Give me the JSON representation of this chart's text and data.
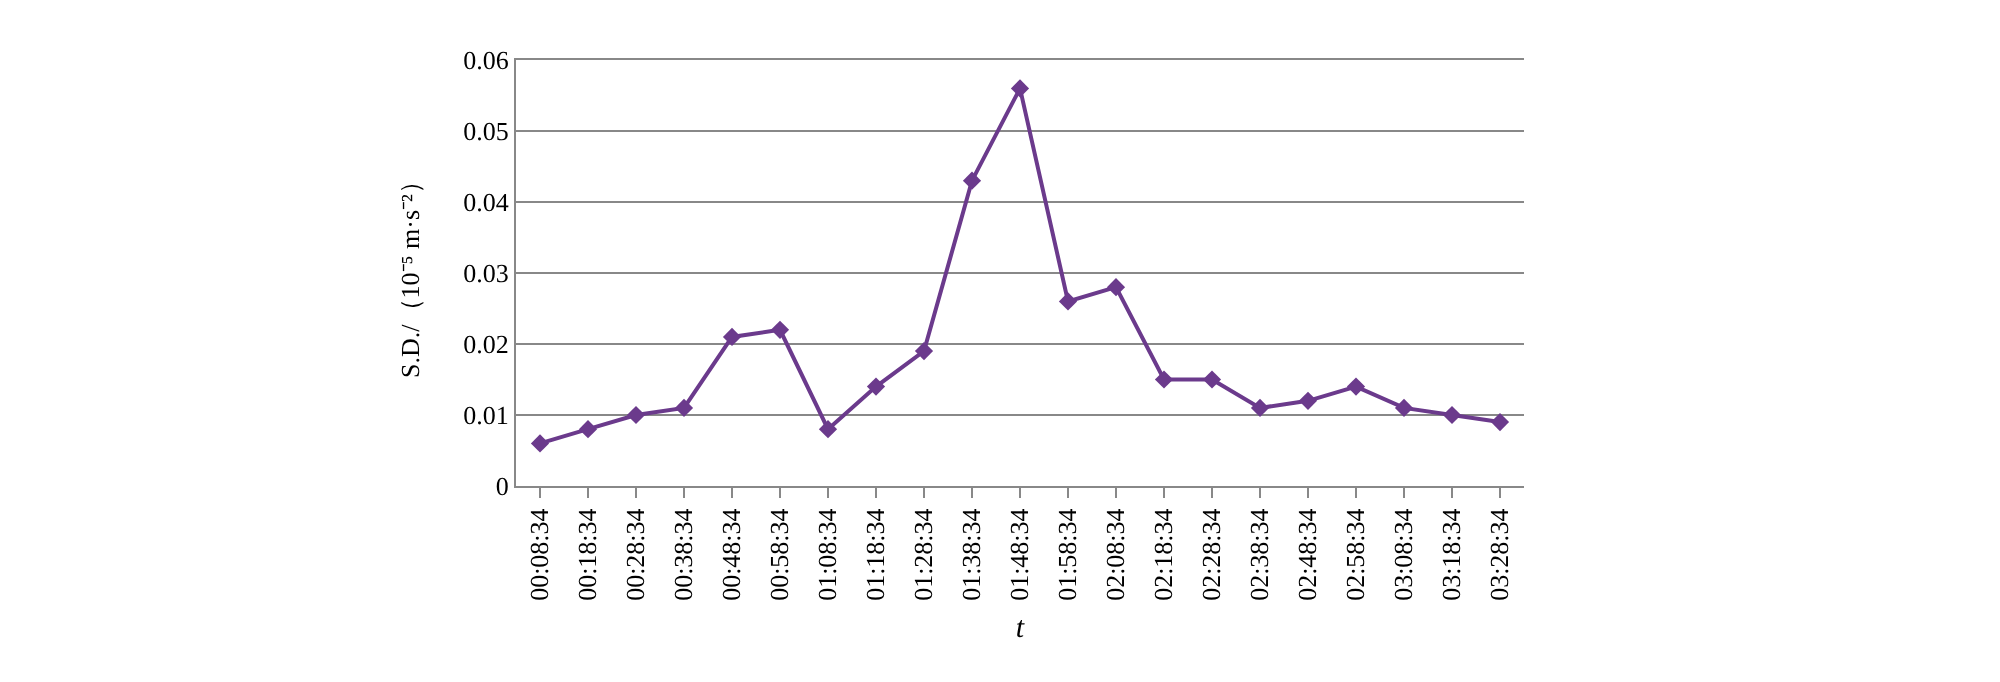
{
  "chart_data": {
    "type": "line",
    "xlabel": "t",
    "ylabel": "S.D./（10⁻⁵ m·s⁻²）",
    "categories": [
      "00:08:34",
      "00:18:34",
      "00:28:34",
      "00:38:34",
      "00:48:34",
      "00:58:34",
      "01:08:34",
      "01:18:34",
      "01:28:34",
      "01:38:34",
      "01:48:34",
      "01:58:34",
      "02:08:34",
      "02:18:34",
      "02:28:34",
      "02:38:34",
      "02:48:34",
      "02:58:34",
      "03:08:34",
      "03:18:34",
      "03:28:34"
    ],
    "series": [
      {
        "color": "#6b3a8c",
        "values": [
          0.006,
          0.008,
          0.01,
          0.011,
          0.021,
          0.022,
          0.008,
          0.014,
          0.019,
          0.043,
          0.056,
          0.026,
          0.028,
          0.015,
          0.015,
          0.011,
          0.012,
          0.014,
          0.011,
          0.01,
          0.009
        ]
      }
    ],
    "ylim": [
      0,
      0.06
    ],
    "yticks": [
      0,
      0.01,
      0.02,
      0.03,
      0.04,
      0.05,
      0.06
    ],
    "grid": "y",
    "marker": "diamond",
    "line_style": "solid"
  }
}
